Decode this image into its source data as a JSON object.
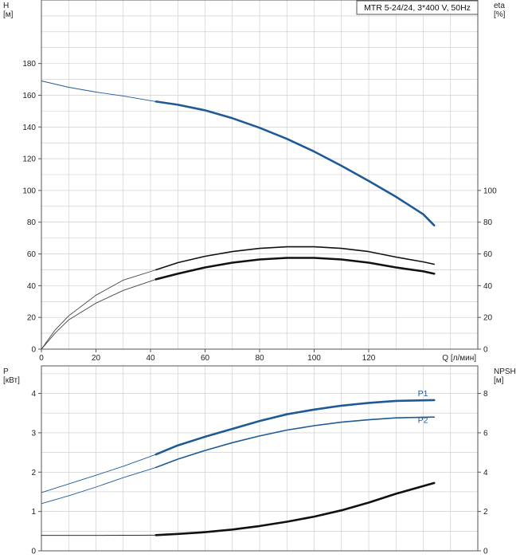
{
  "chart_data": [
    {
      "type": "line",
      "panel": "top",
      "legend": "MTR 5-24/24, 3*400 V, 50Hz",
      "legend_position": "top-right",
      "grid": true,
      "xlabel": "Q [л/мин]",
      "x_ticks": [
        "0",
        "20",
        "40",
        "60",
        "80",
        "100",
        "120"
      ],
      "xlim": [
        0,
        160
      ],
      "ylabel_left": [
        "H",
        "[м]"
      ],
      "ylim_left": [
        0,
        220
      ],
      "y_ticks_left": [
        "0",
        "20",
        "40",
        "60",
        "80",
        "100",
        "120",
        "140",
        "160",
        "180"
      ],
      "ylabel_right": [
        "eta",
        "[%]"
      ],
      "ylim_right": [
        0,
        220
      ],
      "y_ticks_right": [
        "0",
        "20",
        "40",
        "60",
        "80",
        "100"
      ],
      "series": [
        {
          "axis": "left",
          "style": "thin",
          "color": "#1f5a96",
          "points": [
            [
              0,
              169
            ],
            [
              10,
              165
            ],
            [
              20,
              162
            ],
            [
              30,
              159.5
            ],
            [
              42,
              156
            ]
          ]
        },
        {
          "axis": "left",
          "style": "thick",
          "color": "#1f5a96",
          "points": [
            [
              42,
              156
            ],
            [
              50,
              154
            ],
            [
              60,
              150.5
            ],
            [
              70,
              145.5
            ],
            [
              80,
              139.5
            ],
            [
              90,
              132.5
            ],
            [
              100,
              124.5
            ],
            [
              110,
              115.5
            ],
            [
              120,
              106
            ],
            [
              130,
              96
            ],
            [
              140,
              85
            ],
            [
              144,
              78
            ]
          ]
        },
        {
          "axis": "right",
          "style": "thin",
          "color": "#444444",
          "points": [
            [
              0,
              0
            ],
            [
              5,
              12
            ],
            [
              10,
              21
            ],
            [
              20,
              34
            ],
            [
              30,
              43.5
            ],
            [
              42,
              50
            ]
          ]
        },
        {
          "axis": "right",
          "style": "medium",
          "color": "#111111",
          "points": [
            [
              42,
              50
            ],
            [
              50,
              54.5
            ],
            [
              60,
              58.5
            ],
            [
              70,
              61.5
            ],
            [
              80,
              63.5
            ],
            [
              90,
              64.5
            ],
            [
              100,
              64.5
            ],
            [
              110,
              63.5
            ],
            [
              120,
              61.5
            ],
            [
              130,
              58
            ],
            [
              140,
              55
            ],
            [
              144,
              53.5
            ]
          ]
        },
        {
          "axis": "right",
          "style": "thin",
          "color": "#444444",
          "points": [
            [
              0,
              0
            ],
            [
              5,
              10
            ],
            [
              10,
              18.5
            ],
            [
              20,
              29
            ],
            [
              30,
              37
            ],
            [
              42,
              44
            ]
          ]
        },
        {
          "axis": "right",
          "style": "thick",
          "color": "#111111",
          "points": [
            [
              42,
              44
            ],
            [
              50,
              47.5
            ],
            [
              60,
              51.5
            ],
            [
              70,
              54.5
            ],
            [
              80,
              56.5
            ],
            [
              90,
              57.5
            ],
            [
              100,
              57.5
            ],
            [
              110,
              56.5
            ],
            [
              120,
              54.5
            ],
            [
              130,
              51.5
            ],
            [
              140,
              49
            ],
            [
              144,
              47.5
            ]
          ]
        }
      ]
    },
    {
      "type": "line",
      "panel": "bottom",
      "grid": true,
      "xlim": [
        0,
        160
      ],
      "ylabel_left": [
        "P",
        "[кВт]"
      ],
      "ylim_left": [
        0,
        4.7
      ],
      "y_ticks_left": [
        "0",
        "1",
        "2",
        "3",
        "4"
      ],
      "ylabel_right": [
        "NPSH",
        "[м]"
      ],
      "ylim_right": [
        0,
        9.4
      ],
      "y_ticks_right": [
        "0",
        "2",
        "4",
        "6",
        "8"
      ],
      "series": [
        {
          "axis": "left",
          "style": "thin",
          "color": "#1f5a96",
          "points": [
            [
              0,
              1.48
            ],
            [
              10,
              1.7
            ],
            [
              20,
              1.92
            ],
            [
              30,
              2.15
            ],
            [
              42,
              2.45
            ]
          ]
        },
        {
          "axis": "left",
          "style": "thick",
          "color": "#1f5a96",
          "name": "P1",
          "name_at": [
            138,
            3.93
          ],
          "points": [
            [
              42,
              2.45
            ],
            [
              50,
              2.68
            ],
            [
              60,
              2.9
            ],
            [
              70,
              3.1
            ],
            [
              80,
              3.3
            ],
            [
              90,
              3.47
            ],
            [
              100,
              3.59
            ],
            [
              110,
              3.69
            ],
            [
              120,
              3.76
            ],
            [
              130,
              3.81
            ],
            [
              144,
              3.83
            ]
          ]
        },
        {
          "axis": "left",
          "style": "thin",
          "color": "#1f5a96",
          "points": [
            [
              0,
              1.2
            ],
            [
              10,
              1.4
            ],
            [
              20,
              1.62
            ],
            [
              30,
              1.86
            ],
            [
              42,
              2.12
            ]
          ]
        },
        {
          "axis": "left",
          "style": "medium",
          "color": "#1f5a96",
          "name": "P2",
          "name_at": [
            138,
            3.25
          ],
          "points": [
            [
              42,
              2.12
            ],
            [
              50,
              2.33
            ],
            [
              60,
              2.55
            ],
            [
              70,
              2.75
            ],
            [
              80,
              2.92
            ],
            [
              90,
              3.07
            ],
            [
              100,
              3.18
            ],
            [
              110,
              3.27
            ],
            [
              120,
              3.33
            ],
            [
              130,
              3.38
            ],
            [
              144,
              3.4
            ]
          ]
        },
        {
          "axis": "right",
          "style": "thin",
          "color": "#111111",
          "points": [
            [
              0,
              0.78
            ],
            [
              20,
              0.78
            ],
            [
              42,
              0.8
            ]
          ]
        },
        {
          "axis": "right",
          "style": "thick",
          "color": "#111111",
          "points": [
            [
              42,
              0.8
            ],
            [
              50,
              0.86
            ],
            [
              60,
              0.95
            ],
            [
              70,
              1.08
            ],
            [
              80,
              1.26
            ],
            [
              90,
              1.48
            ],
            [
              100,
              1.74
            ],
            [
              110,
              2.06
            ],
            [
              120,
              2.45
            ],
            [
              130,
              2.9
            ],
            [
              144,
              3.45
            ]
          ]
        }
      ]
    }
  ]
}
